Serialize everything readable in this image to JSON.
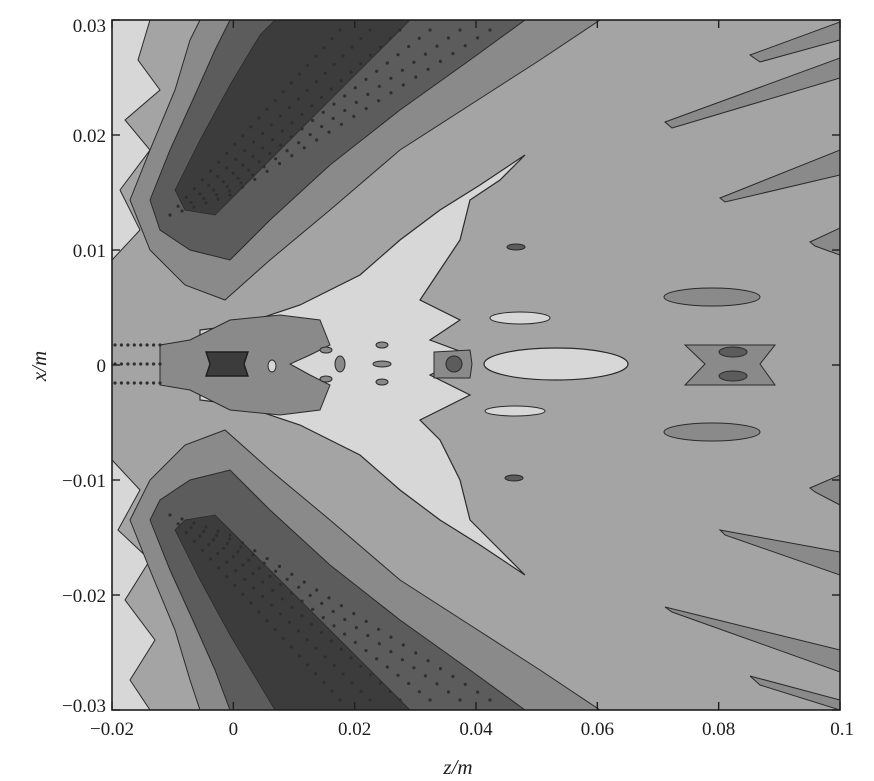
{
  "chart_data": {
    "type": "contour",
    "xlabel": "z/m",
    "ylabel": "x/m",
    "xlim": [
      -0.02,
      0.1
    ],
    "ylim": [
      -0.03,
      0.03
    ],
    "xticks": [
      -0.02,
      0,
      0.02,
      0.04,
      0.06,
      0.08,
      0.1
    ],
    "xtick_labels": [
      "−0.02",
      "0",
      "0.02",
      "0.04",
      "0.06",
      "0.08",
      "0.1"
    ],
    "yticks": [
      0.03,
      0.02,
      0.01,
      0,
      -0.01,
      -0.02,
      -0.03
    ],
    "ytick_labels": [
      "0.03",
      "0.02",
      "0.01",
      "0",
      "−0.01",
      "−0.02",
      "−0.03"
    ],
    "grid": false,
    "colors": {
      "background_level": "#a4a4a4",
      "light_level": "#d7d7d7",
      "mid_level": "#8a8a8a",
      "dark_level": "#5c5c5c",
      "darkest_level": "#3c3c3c",
      "contour_line": "#2a2a2a"
    }
  }
}
